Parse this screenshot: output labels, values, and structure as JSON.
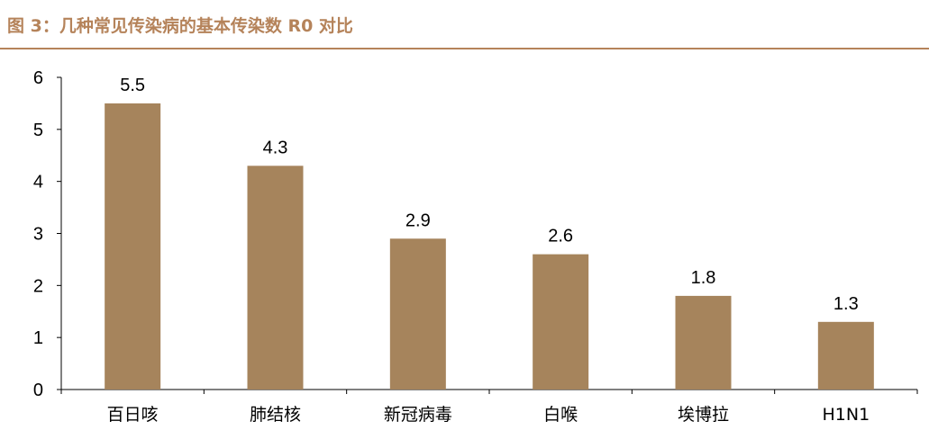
{
  "figure": {
    "title": "图 3：几种常见传染病的基本传染数 R0 对比"
  },
  "colors": {
    "bar": "#a6845c",
    "title": "#b5835a",
    "axis": "#000000"
  },
  "chart_data": {
    "type": "bar",
    "title": "",
    "xlabel": "",
    "ylabel": "",
    "categories": [
      "百日咳",
      "肺结核",
      "新冠病毒",
      "白喉",
      "埃博拉",
      "H1N1"
    ],
    "values": [
      5.5,
      4.3,
      2.9,
      2.6,
      1.8,
      1.3
    ],
    "data_labels": [
      "5.5",
      "4.3",
      "2.9",
      "2.6",
      "1.8",
      "1.3"
    ],
    "ylim": [
      0,
      6
    ],
    "yticks": [
      "0",
      "1",
      "2",
      "3",
      "4",
      "5",
      "6"
    ],
    "grid": false,
    "legend": "none"
  }
}
